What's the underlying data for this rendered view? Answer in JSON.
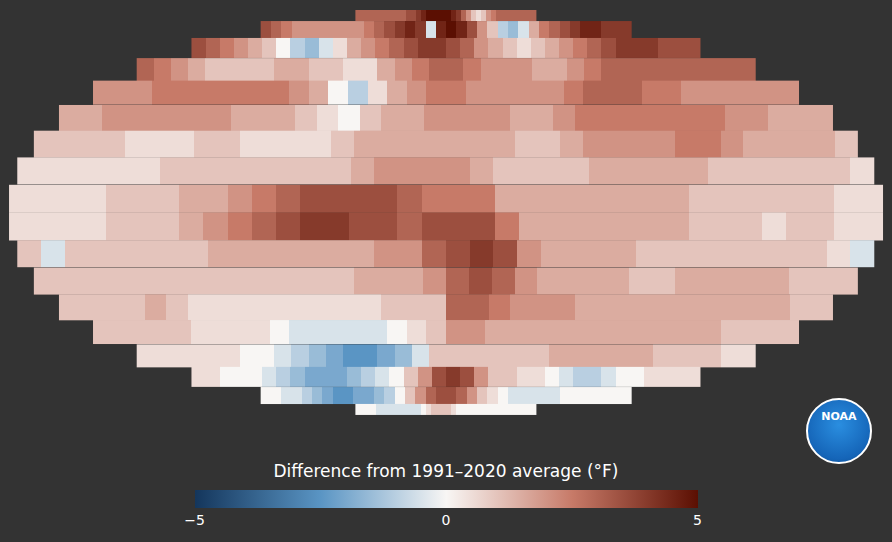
{
  "chart_data": {
    "type": "heatmap",
    "lat": [
      85,
      75,
      65,
      55,
      45,
      35,
      25,
      15,
      5,
      -5,
      -15,
      -25,
      -35,
      -45,
      -55,
      -65,
      -75,
      -85
    ],
    "lon": [
      115,
      125,
      135,
      145,
      155,
      165,
      175,
      -175,
      -165,
      -155,
      -145,
      -135,
      -125,
      -115,
      -105,
      -95,
      -85,
      -75,
      -65,
      -55,
      -45,
      -35,
      -25,
      -15,
      -5,
      5,
      15,
      25,
      35,
      45,
      55,
      65,
      75,
      85,
      95,
      105
    ],
    "cells": [
      [
        3,
        3,
        3,
        3,
        3,
        3,
        3,
        3,
        3,
        3,
        3.5,
        3.5,
        4,
        4.5,
        5,
        5,
        5,
        5,
        5,
        4.5,
        4,
        3,
        2,
        1,
        0.5,
        1,
        2,
        2.5,
        3,
        3,
        3,
        3,
        3,
        3,
        3,
        3
      ],
      [
        3.5,
        3,
        2.5,
        2,
        2,
        2,
        2,
        2,
        2,
        2,
        2.5,
        3,
        3.5,
        4,
        4.5,
        4,
        -0.5,
        4.5,
        5,
        4.5,
        3.5,
        2,
        1,
        -1,
        -1.5,
        -0.5,
        1.5,
        2.5,
        3,
        3.5,
        4,
        4.5,
        4.5,
        4,
        4,
        4
      ],
      [
        3.5,
        3,
        2.5,
        2,
        1.5,
        1,
        0,
        -1,
        -1.5,
        -0.5,
        0.5,
        1.5,
        2,
        2.5,
        3,
        3.5,
        4,
        4,
        3.5,
        3,
        2,
        1.5,
        1,
        0.5,
        1,
        1.5,
        2,
        2.5,
        3,
        3.5,
        4,
        4,
        4,
        3.5,
        3.5,
        3.5
      ],
      [
        3,
        2.5,
        2,
        1.5,
        1,
        1,
        1,
        1,
        1.5,
        1.5,
        1,
        1,
        0.5,
        0.5,
        1.5,
        2,
        2.5,
        3,
        3,
        2.5,
        2,
        2,
        2,
        1.5,
        1.5,
        2,
        2.5,
        3,
        3,
        3,
        3,
        3,
        3,
        3,
        3,
        3
      ],
      [
        2,
        2,
        2,
        2.5,
        2.5,
        2.5,
        2.5,
        2.5,
        2.5,
        2.5,
        2,
        1.5,
        0,
        -1,
        0.5,
        1.5,
        2,
        2.5,
        2.5,
        2,
        2,
        2,
        2,
        2,
        2.5,
        3,
        3,
        3,
        2.5,
        2.5,
        2,
        2,
        2,
        2,
        2,
        2
      ],
      [
        1.5,
        1.5,
        2,
        2,
        2,
        2,
        2,
        2,
        1.5,
        1.5,
        1.5,
        1,
        0.5,
        0,
        1,
        1.5,
        1.5,
        2,
        2,
        2,
        2,
        1.5,
        1.5,
        2,
        2.5,
        2.5,
        2.5,
        2.5,
        2.5,
        2.5,
        2.5,
        2,
        2,
        1.5,
        1.5,
        1.5
      ],
      [
        1,
        1,
        1,
        1,
        0.5,
        0.5,
        0.5,
        1,
        1,
        0.5,
        0.5,
        0.5,
        0.5,
        1,
        1.5,
        1.5,
        1.5,
        1.5,
        1.5,
        1.5,
        1.5,
        1,
        1,
        1.5,
        2,
        2,
        2,
        2,
        2.5,
        2.5,
        2,
        1.5,
        1.5,
        1.5,
        1.5,
        1
      ],
      [
        0.5,
        0.5,
        0.5,
        0.5,
        0.5,
        0.5,
        1,
        1,
        1,
        1,
        1,
        1,
        1,
        1,
        1.5,
        2,
        2,
        2,
        2,
        1.5,
        1,
        1,
        1,
        1,
        1.5,
        1.5,
        1.5,
        1.5,
        1.5,
        1,
        1,
        1,
        1,
        1,
        1,
        0.5
      ],
      [
        0.5,
        0.5,
        0.5,
        0.5,
        1,
        1,
        1,
        1.5,
        1.5,
        2,
        2.5,
        3,
        3.5,
        3.5,
        3.5,
        3.5,
        3,
        2.5,
        2.5,
        2.5,
        1.5,
        1.5,
        1.5,
        1.5,
        1.5,
        1.5,
        1.5,
        1.5,
        1,
        1,
        1,
        1,
        1,
        1,
        0.5,
        0.5
      ],
      [
        0.5,
        0.5,
        0.5,
        0.5,
        1,
        1,
        1,
        1.5,
        2,
        2.5,
        3,
        3.5,
        4,
        4,
        3.5,
        3.5,
        3,
        3.5,
        3.5,
        3.5,
        2.5,
        1.5,
        1.5,
        1.5,
        1.5,
        1.5,
        1.5,
        1.5,
        1,
        1,
        1,
        0.5,
        1,
        1,
        0.5,
        0.5
      ],
      [
        1,
        -0.5,
        1,
        1,
        1,
        1,
        1,
        1,
        1.5,
        1.5,
        1.5,
        1.5,
        1.5,
        1.5,
        1.5,
        2,
        2,
        3,
        3.5,
        4,
        3.5,
        2,
        1.5,
        1.5,
        1.5,
        1.5,
        1,
        1,
        1,
        1,
        1,
        1,
        1,
        1,
        0.5,
        -0.5
      ],
      [
        1,
        1,
        1,
        1,
        1,
        1,
        1,
        1,
        1,
        1,
        1,
        1,
        1,
        1,
        1.5,
        1.5,
        1.5,
        2,
        3,
        3.5,
        3,
        2,
        1.5,
        1.5,
        1.5,
        1.5,
        1,
        1,
        1.5,
        1.5,
        1.5,
        1.5,
        1.5,
        1,
        1,
        1
      ],
      [
        1,
        1,
        1,
        1,
        1.5,
        1,
        0.5,
        0.5,
        0.5,
        0.5,
        0.5,
        0.5,
        0.5,
        0.5,
        0.5,
        1,
        1,
        1,
        3,
        3,
        2.5,
        2,
        2,
        2,
        1.5,
        1.5,
        1.5,
        1.5,
        1.5,
        1.5,
        1.5,
        1.5,
        1.5,
        1.5,
        1,
        1
      ],
      [
        1,
        1,
        1,
        1,
        1,
        0.5,
        0.5,
        0.5,
        0.5,
        0,
        -0.5,
        -0.5,
        -0.5,
        -0.5,
        -0.5,
        0,
        0.5,
        1,
        2,
        2,
        1.5,
        1.5,
        1.5,
        1.5,
        1.5,
        1.5,
        1.5,
        1.5,
        1.5,
        1.5,
        1.5,
        1.5,
        1,
        1,
        1,
        1
      ],
      [
        0.5,
        0.5,
        0.5,
        0.5,
        0.5,
        0.5,
        0,
        0,
        -0.5,
        -1,
        -1.5,
        -2,
        -2.5,
        -2.5,
        -2,
        -1.5,
        -0.5,
        1,
        1,
        1,
        1,
        1,
        1,
        1,
        1.5,
        1.5,
        1.5,
        1.5,
        1.5,
        1.5,
        1,
        1,
        1,
        1,
        0.5,
        0.5
      ],
      [
        0.5,
        0.5,
        0,
        0,
        0,
        -0.5,
        -1,
        -1.5,
        -2,
        -2,
        -2,
        -1.5,
        -1,
        -0.5,
        0,
        1,
        2,
        3.5,
        4,
        3.5,
        2,
        1,
        1,
        0.5,
        0.5,
        0,
        -0.5,
        -1,
        -1,
        -0.5,
        0,
        0,
        0.5,
        0.5,
        0.5,
        0.5
      ],
      [
        0,
        0,
        -0.5,
        -0.5,
        -1,
        -1.5,
        -2,
        -2.5,
        -2.5,
        -2,
        -2,
        -1.5,
        -1,
        0,
        1,
        2,
        3,
        3.5,
        3.5,
        3,
        2,
        1,
        0.5,
        0,
        -0.5,
        -0.5,
        -0.5,
        -0.5,
        -0.5,
        0,
        0,
        0,
        0,
        0,
        0,
        0
      ],
      [
        0,
        0,
        0,
        0,
        -0.5,
        -0.5,
        -0.5,
        -0.5,
        -0.5,
        -0.5,
        -0.5,
        -0.5,
        -0.5,
        0,
        0.5,
        1,
        1,
        1,
        1,
        0.5,
        0,
        0,
        0,
        0,
        0,
        0,
        0,
        0,
        0,
        0,
        0,
        0,
        0,
        0,
        0,
        0
      ]
    ],
    "colorbar": {
      "title": "Difference from 1991–2020 average (°F)",
      "range": [
        -5,
        5
      ],
      "ticks": [
        {
          "value": -5,
          "label": "−5"
        },
        0,
        5
      ]
    }
  },
  "logo": "NOAA"
}
